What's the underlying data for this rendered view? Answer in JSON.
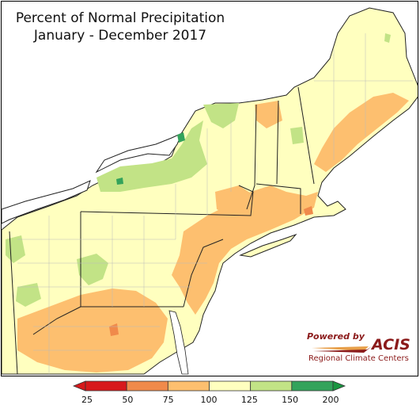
{
  "title": {
    "line1": "Percent of Normal Precipitation",
    "line2": "January - December 2017"
  },
  "credit": {
    "powered_by": "Powered by",
    "acis": "ACIS",
    "subtitle": "Regional Climate Centers"
  },
  "legend": {
    "ticks": [
      "25",
      "50",
      "75",
      "100",
      "125",
      "150",
      "200"
    ],
    "bins": [
      {
        "from": "25",
        "to": "50",
        "color": "#d7191c"
      },
      {
        "from": "50",
        "to": "75",
        "color": "#f08a4b"
      },
      {
        "from": "75",
        "to": "100",
        "color": "#fdbf6f"
      },
      {
        "from": "100",
        "to": "125",
        "color": "#ffffbf"
      },
      {
        "from": "125",
        "to": "150",
        "color": "#c2e386"
      },
      {
        "from": "150",
        "to": "200",
        "color": "#33a35b"
      }
    ],
    "below_min_color": "#d7191c",
    "above_max_color": "#1a9641"
  },
  "colors": {
    "water": "#ffffff",
    "border": "#222222",
    "county": "#bbbbbb",
    "acis_red": "#8b1a1a"
  }
}
